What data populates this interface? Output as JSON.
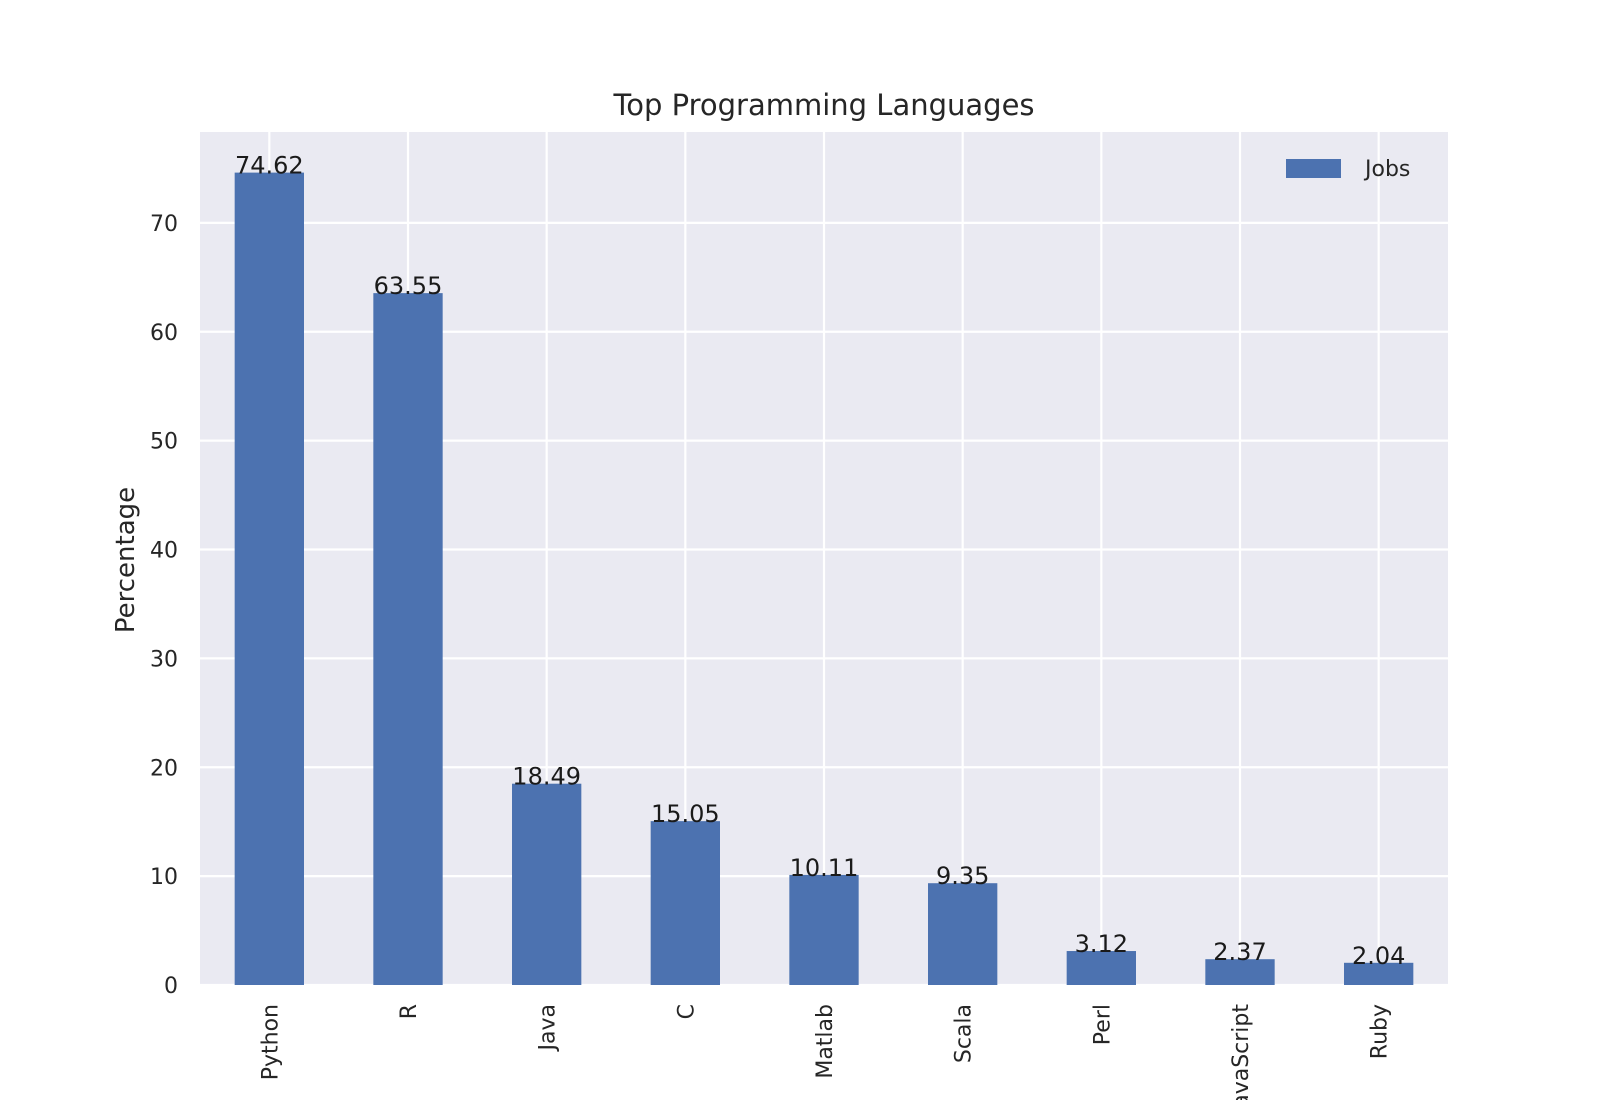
{
  "chart_data": {
    "type": "bar",
    "title": "Top Programming Languages",
    "xlabel": "",
    "ylabel": "Percentage",
    "categories": [
      "Python",
      "R",
      "Java",
      "C",
      "Matlab",
      "Scala",
      "Perl",
      "JavaScript",
      "Ruby"
    ],
    "series": [
      {
        "name": "Jobs",
        "values": [
          74.62,
          63.55,
          18.49,
          15.05,
          10.11,
          9.35,
          3.12,
          2.37,
          2.04
        ],
        "labels": [
          "74.62",
          "63.55",
          "18.49",
          "15.05",
          "10.11",
          "9.35",
          "3.12",
          "2.37",
          "2.04"
        ]
      }
    ],
    "ylim": [
      0,
      78.35
    ],
    "yticks": [
      0,
      10,
      20,
      30,
      40,
      50,
      60,
      70
    ],
    "grid": true,
    "legend": "upper-right",
    "colors": {
      "bar": "#4c72b0",
      "plot_background": "#eaeaf2",
      "grid": "#ffffff"
    }
  }
}
